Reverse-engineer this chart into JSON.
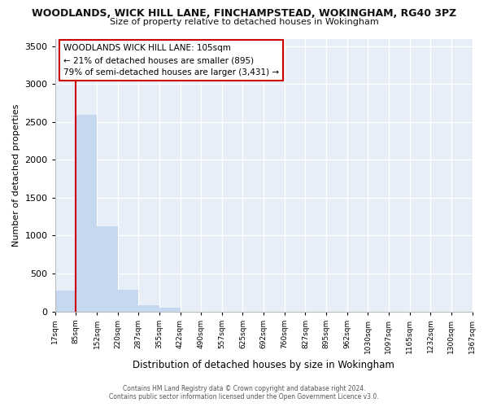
{
  "title": "WOODLANDS, WICK HILL LANE, FINCHAMPSTEAD, WOKINGHAM, RG40 3PZ",
  "subtitle": "Size of property relative to detached houses in Wokingham",
  "xlabel": "Distribution of detached houses by size in Wokingham",
  "ylabel": "Number of detached properties",
  "bin_labels": [
    "17sqm",
    "85sqm",
    "152sqm",
    "220sqm",
    "287sqm",
    "355sqm",
    "422sqm",
    "490sqm",
    "557sqm",
    "625sqm",
    "692sqm",
    "760sqm",
    "827sqm",
    "895sqm",
    "962sqm",
    "1030sqm",
    "1097sqm",
    "1165sqm",
    "1232sqm",
    "1300sqm",
    "1367sqm"
  ],
  "bar_heights": [
    270,
    2600,
    1120,
    280,
    85,
    45,
    0,
    0,
    0,
    0,
    0,
    0,
    0,
    0,
    0,
    0,
    0,
    0,
    0,
    0
  ],
  "bar_color": "#c5d8f0",
  "vline_x": 1,
  "vline_color": "#cc0000",
  "ylim": [
    0,
    3600
  ],
  "yticks": [
    0,
    500,
    1000,
    1500,
    2000,
    2500,
    3000,
    3500
  ],
  "annotation_title": "WOODLANDS WICK HILL LANE: 105sqm",
  "annotation_line1": "← 21% of detached houses are smaller (895)",
  "annotation_line2": "79% of semi-detached houses are larger (3,431) →",
  "annotation_box_color": "#cc0000",
  "footer_line1": "Contains HM Land Registry data © Crown copyright and database right 2024.",
  "footer_line2": "Contains public sector information licensed under the Open Government Licence v3.0.",
  "background_color": "#ffffff",
  "plot_bg_color": "#e8eef8",
  "grid_color": "#ffffff",
  "num_bins": 20
}
